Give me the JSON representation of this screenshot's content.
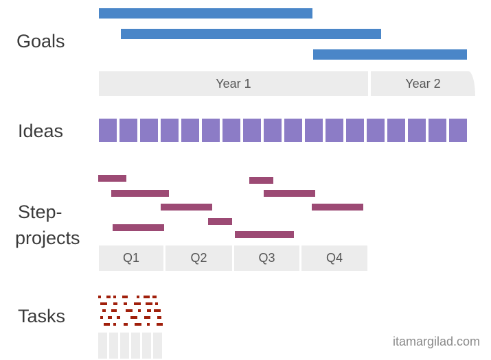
{
  "rows": {
    "goals": "Goals",
    "ideas": "Ideas",
    "step_projects_line1": "Step-",
    "step_projects_line2": "projects",
    "tasks": "Tasks"
  },
  "timeline_years": [
    "Year 1",
    "Year 2"
  ],
  "timeline_quarters": [
    "Q1",
    "Q2",
    "Q3",
    "Q4"
  ],
  "credit": "itamargilad.com",
  "colors": {
    "goals": "#4a86c8",
    "ideas": "#8c7cc6",
    "step_projects": "#9c4a74",
    "tasks": "#a01f0b",
    "timeline": "#ececec"
  }
}
